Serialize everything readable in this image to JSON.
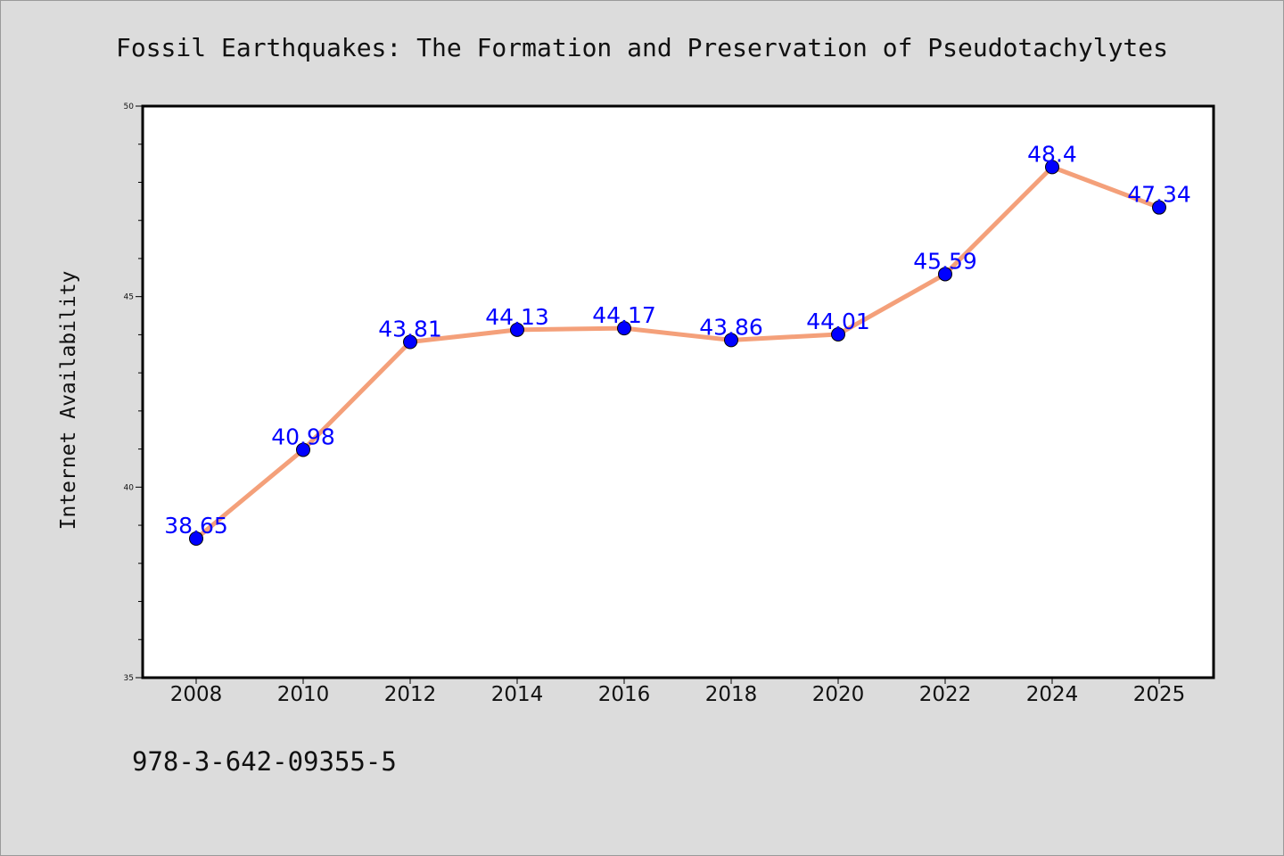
{
  "chart_data": {
    "type": "line",
    "title": "Fossil Earthquakes: The Formation and Preservation of Pseudotachylytes",
    "xlabel": "",
    "ylabel": "Internet Availability",
    "categories": [
      "2008",
      "2010",
      "2012",
      "2014",
      "2016",
      "2018",
      "2020",
      "2022",
      "2024",
      "2025"
    ],
    "series": [
      {
        "values": [
          38.65,
          40.98,
          43.81,
          44.13,
          44.17,
          43.86,
          44.01,
          45.59,
          48.4,
          47.34
        ],
        "labels": [
          "38.65",
          "40.98",
          "43.81",
          "44.13",
          "44.17",
          "43.86",
          "44.01",
          "45.59",
          "48.4",
          "47.34"
        ],
        "line_color": "#f4a07a",
        "marker_color": "#0000ff",
        "label_color": "#0000ff"
      }
    ],
    "ylim": [
      35,
      50
    ],
    "yticks": [
      "35",
      "40",
      "45",
      "50"
    ],
    "ytick_values": [
      35,
      40,
      45,
      50
    ],
    "y_minor_step": 1,
    "grid": false,
    "legend": "none"
  },
  "footer_note": "978-3-642-09355-5"
}
